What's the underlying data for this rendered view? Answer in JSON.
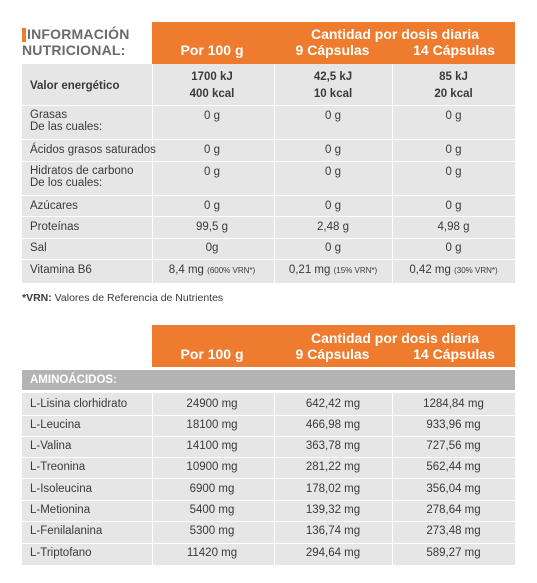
{
  "nutrition": {
    "title_line1": "INFORMACIÓN",
    "title_line2": "NUTRICIONAL:",
    "daily_header": "Cantidad por dosis diaria",
    "col_per100": "Por 100 g",
    "col_9caps": "9 Cápsulas",
    "col_14caps": "14 Cápsulas",
    "rows": [
      {
        "label": "Valor energético",
        "v100": "1700 kJ",
        "v100b": "400 kcal",
        "v9": "42,5 kJ",
        "v9b": "10 kcal",
        "v14": "85 kJ",
        "v14b": "20 kcal"
      },
      {
        "label": "Grasas",
        "label2": "De las cuales:",
        "v100": "0 g",
        "v9": "0 g",
        "v14": "0 g"
      },
      {
        "label": "Ácidos grasos saturados",
        "v100": "0 g",
        "v9": "0 g",
        "v14": "0 g"
      },
      {
        "label": "Hidratos de carbono",
        "label2": "De los cuales:",
        "v100": "0 g",
        "v9": "0 g",
        "v14": "0 g"
      },
      {
        "label": "Azúcares",
        "v100": "0 g",
        "v9": "0 g",
        "v14": "0 g"
      },
      {
        "label": "Proteínas",
        "v100": "99,5 g",
        "v9": "2,48 g",
        "v14": "4,98 g"
      },
      {
        "label": "Sal",
        "v100": "0g",
        "v9": "0 g",
        "v14": "0 g"
      },
      {
        "label": "Vitamina B6",
        "v100": "8,4 mg",
        "v100s": "(600% VRN*)",
        "v9": "0,21 mg",
        "v9s": "(15% VRN*)",
        "v14": "0,42 mg",
        "v14s": "(30% VRN*)"
      }
    ],
    "footnote_key": "*VRN:",
    "footnote_text": " Valores de Referencia de Nutrientes"
  },
  "amino": {
    "daily_header": "Cantidad por dosis diaria",
    "col_per100": "Por 100 g",
    "col_9caps": "9 Cápsulas",
    "col_14caps": "14 Cápsulas",
    "section_label": "AMINOÁCIDOS:",
    "rows": [
      {
        "label": "L-Lisina clorhidrato",
        "v100": "24900 mg",
        "v9": "642,42 mg",
        "v14": "1284,84 mg"
      },
      {
        "label": "L-Leucina",
        "v100": "18100 mg",
        "v9": "466,98 mg",
        "v14": "933,96 mg"
      },
      {
        "label": "L-Valina",
        "v100": "14100 mg",
        "v9": "363,78 mg",
        "v14": "727,56 mg"
      },
      {
        "label": "L-Treonina",
        "v100": "10900 mg",
        "v9": "281,22 mg",
        "v14": "562,44 mg"
      },
      {
        "label": "L-Isoleucina",
        "v100": "6900 mg",
        "v9": "178,02 mg",
        "v14": "356,04 mg"
      },
      {
        "label": "L-Metionina",
        "v100": "5400 mg",
        "v9": "139,32 mg",
        "v14": "278,64 mg"
      },
      {
        "label": "L-Fenilalanina",
        "v100": "5300 mg",
        "v9": "136,74 mg",
        "v14": "273,48 mg"
      },
      {
        "label": "L-Triptofano",
        "v100": "11420 mg",
        "v9": "294,64 mg",
        "v14": "589,27 mg"
      }
    ]
  },
  "colors": {
    "accent": "#ef7c2e",
    "row_bg": "#e6e6e6",
    "section_bg": "#b3b3b3"
  }
}
